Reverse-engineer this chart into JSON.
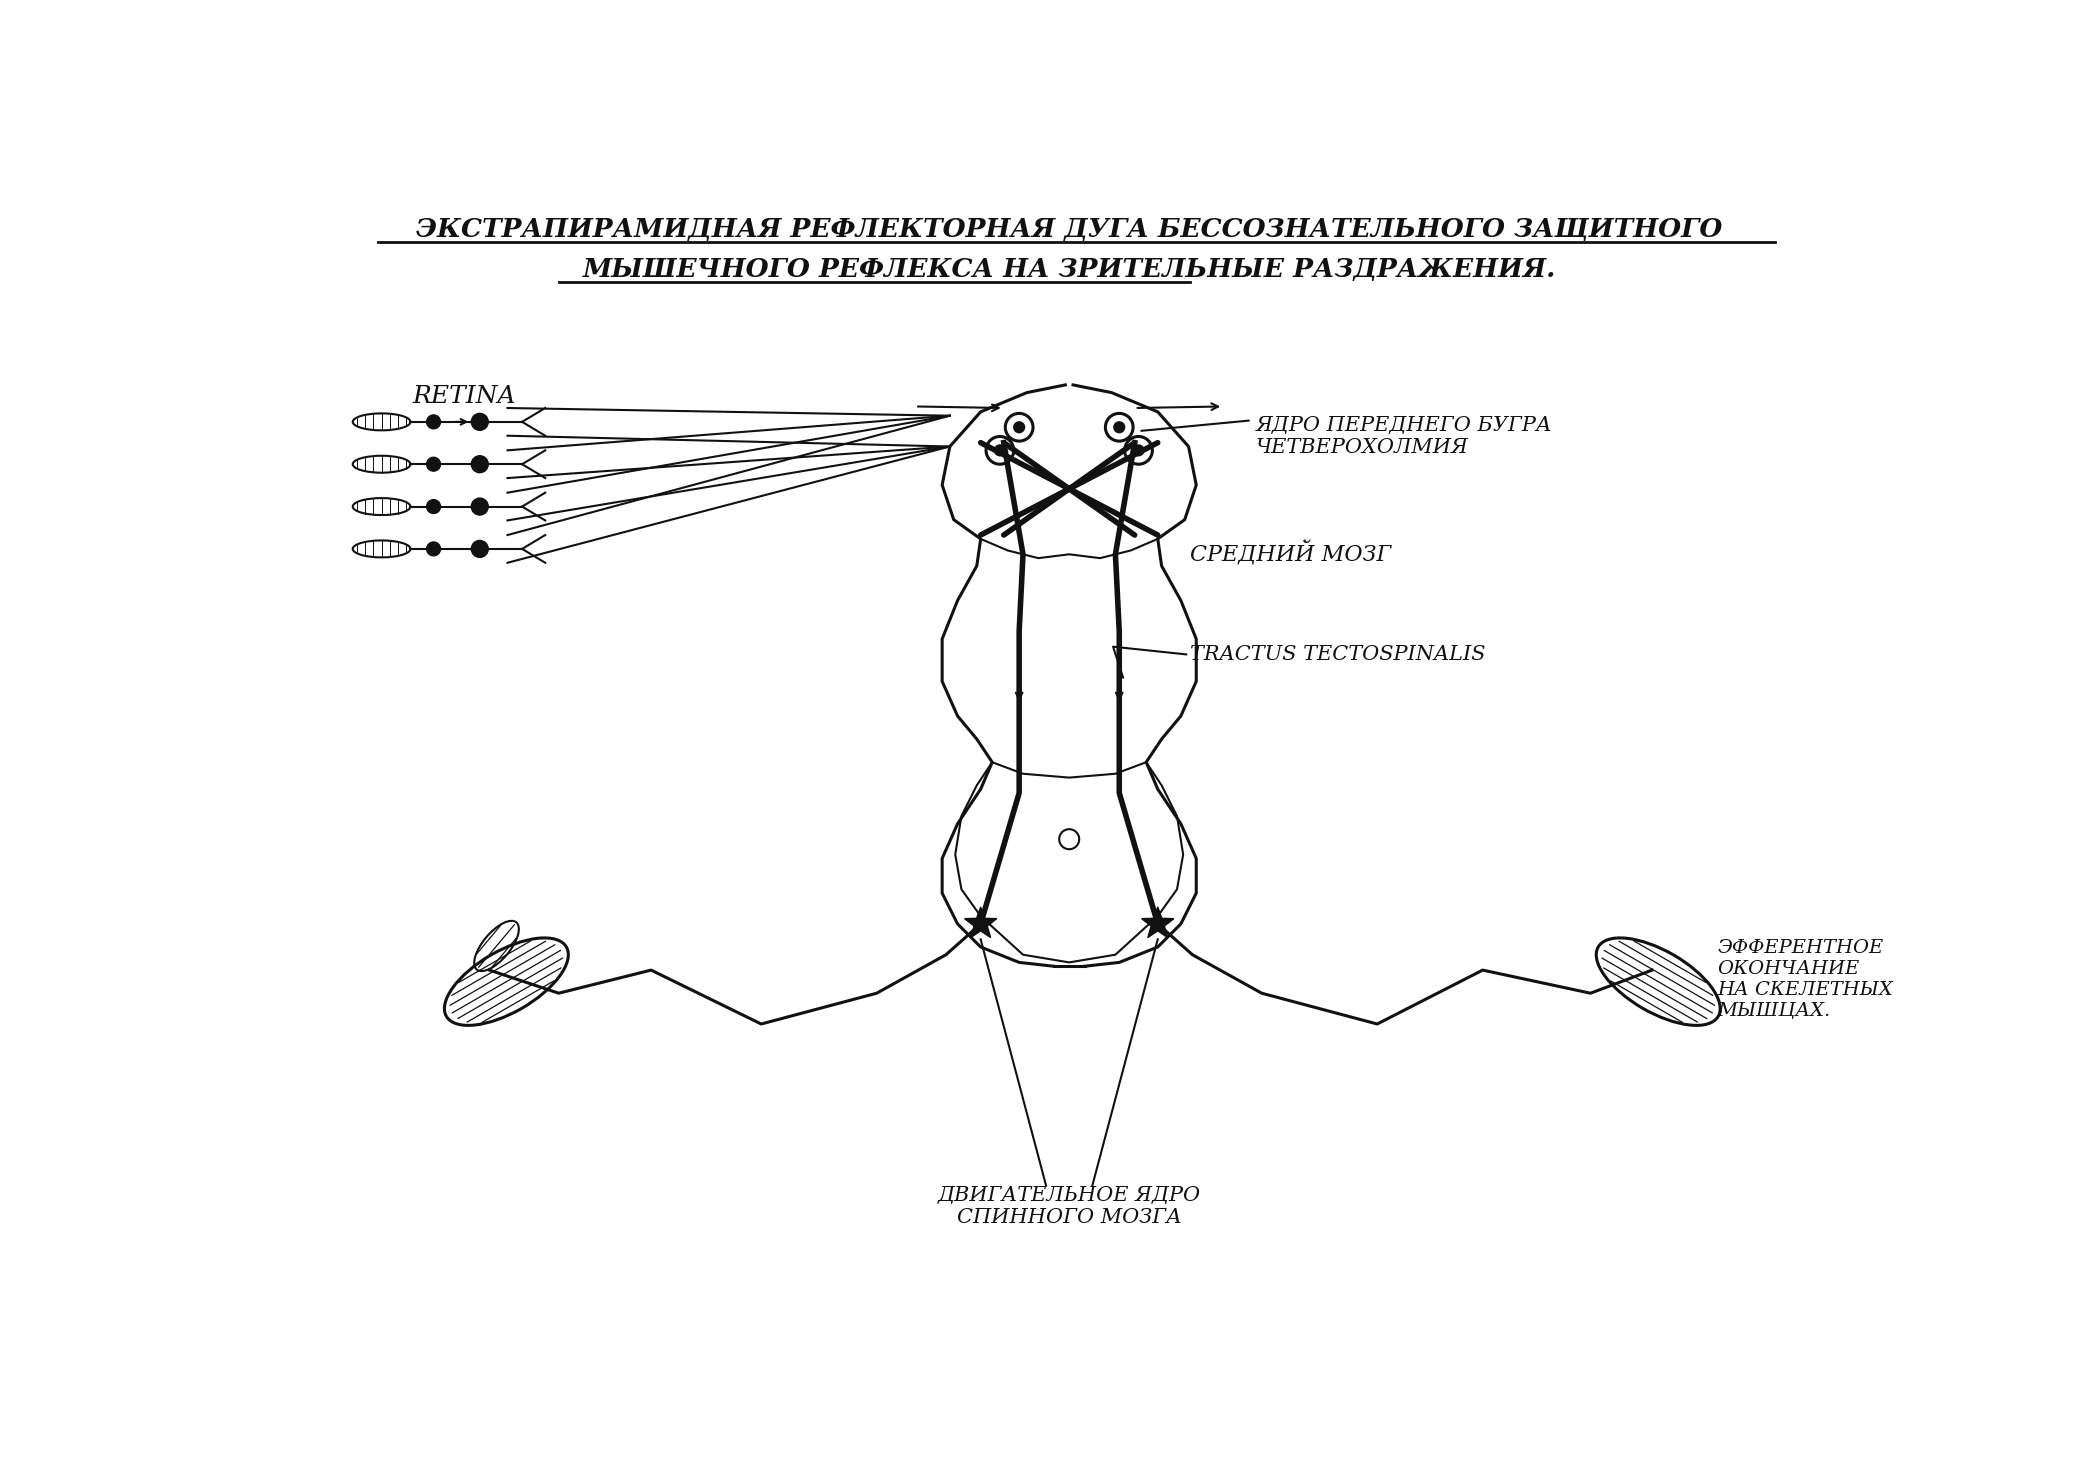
{
  "title_line1": "ЭКСТРАПИРАМИДНАЯ РЕФЛЕКТОРНАЯ ДУГА БЕССОЗНАТЕЛЬНОГО ЗАЩИТНОГО",
  "title_line2": "МЫШЕЧНОГО РЕФЛЕКСА НА ЗРИТЕЛЬНЫЕ РАЗДРАЖЕНИЯ.",
  "label_retina": "RETINA",
  "label_yadro": "ЯДРО ПЕРЕДНЕГО БУГРА\nЧЕТВЕРОХОЛМИЯ",
  "label_sredniy": "СРЕДНИЙ МОЗГ",
  "label_tractus": "TRACTUS TECTOSPINALIS",
  "label_dvigatelnoe": "ДВИГАТЕЛЬНОЕ ЯДРО\nСПИННОГО МОЗГА",
  "label_efferent": "ЭФФЕРЕНТНОЕ\nОКОНЧАНИЕ\nНА СКЕЛЕТНЫХ\nМЫШЦАХ.",
  "bg_color": "#ffffff",
  "line_color": "#111111",
  "figsize": [
    20.87,
    14.75
  ],
  "dpi": 100
}
